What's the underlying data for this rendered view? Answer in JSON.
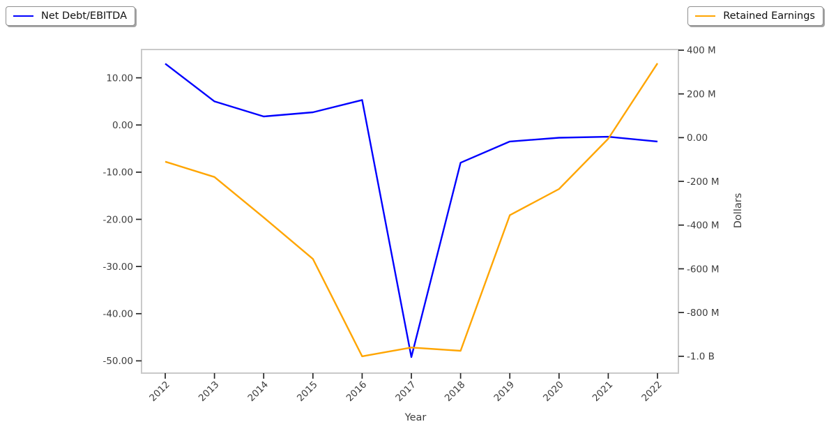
{
  "colors": {
    "net_debt_line": "#0000ff",
    "retained_line": "#ffa500",
    "spine": "#c9c9c9",
    "tick_mark": "#262626",
    "tick_label": "#3d3d3d"
  },
  "legend_left": {
    "label": "Net Debt/EBITDA"
  },
  "legend_right": {
    "label": "Retained Earnings"
  },
  "chart_data": {
    "type": "line",
    "x": [
      2012,
      2013,
      2014,
      2015,
      2016,
      2017,
      2018,
      2019,
      2020,
      2021,
      2022
    ],
    "x_tick_labels": [
      "2012",
      "2013",
      "2014",
      "2015",
      "2016",
      "2017",
      "2018",
      "2019",
      "2020",
      "2021",
      "2022"
    ],
    "xlabel": "Year",
    "series": [
      {
        "name": "Net Debt/EBITDA",
        "axis": "left",
        "color": "#0000ff",
        "values": [
          13.0,
          5.0,
          1.8,
          2.7,
          5.3,
          -49.2,
          -8.0,
          -3.5,
          -2.7,
          -2.5,
          -3.5
        ]
      },
      {
        "name": "Retained Earnings",
        "axis": "right",
        "color": "#ffa500",
        "values_millions": [
          -110,
          -180,
          -365,
          -555,
          -1000,
          -960,
          -975,
          -355,
          -235,
          -5,
          340
        ]
      }
    ],
    "left_axis": {
      "ylim": [
        -52.6,
        16.0
      ],
      "ticks": [
        {
          "value": 10,
          "label": "10.00"
        },
        {
          "value": 0,
          "label": "0.00"
        },
        {
          "value": -10,
          "label": "-10.00"
        },
        {
          "value": -20,
          "label": "-20.00"
        },
        {
          "value": -30,
          "label": "-30.00"
        },
        {
          "value": -40,
          "label": "-40.00"
        },
        {
          "value": -50,
          "label": "-50.00"
        }
      ]
    },
    "right_axis": {
      "label": "Dollars",
      "ylim_millions": [
        -1077,
        403
      ],
      "ticks": [
        {
          "value": 400,
          "label": "400 M"
        },
        {
          "value": 200,
          "label": "200 M"
        },
        {
          "value": 0,
          "label": "0.00"
        },
        {
          "value": -200,
          "label": "-200 M"
        },
        {
          "value": -400,
          "label": "-400 M"
        },
        {
          "value": -600,
          "label": "-600 M"
        },
        {
          "value": -800,
          "label": "-800 M"
        },
        {
          "value": -1000,
          "label": "-1.0 B"
        }
      ]
    },
    "grid": false,
    "legend_position": "outside axes: upper-left and upper-right"
  }
}
